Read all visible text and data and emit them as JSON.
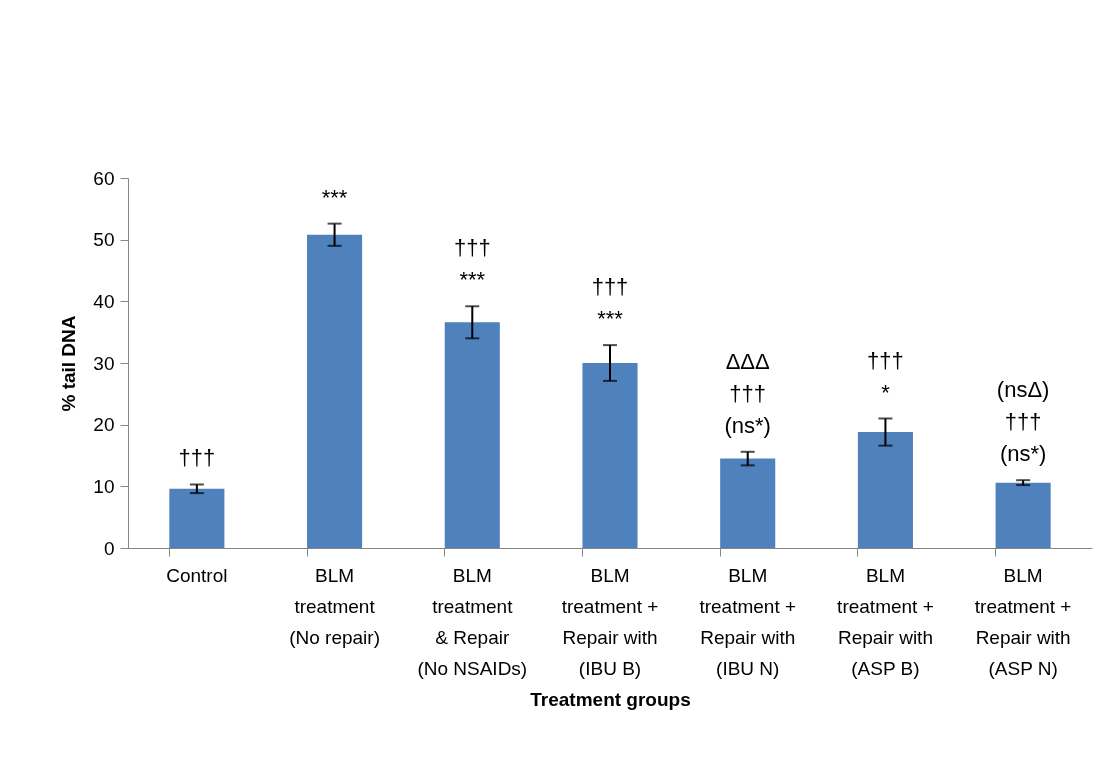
{
  "chart_data": {
    "type": "bar",
    "xlabel": "Treatment groups",
    "ylabel": "% tail DNA",
    "categories": [
      "Control",
      "BLM\ntreatment\n(No repair)",
      "BLM\ntreatment\n& Repair\n(No NSAIDs)",
      "BLM\ntreatment +\nRepair with\n(IBU B)",
      "BLM\ntreatment +\nRepair with\n(IBU N)",
      "BLM\ntreatment +\nRepair with\n(ASP B)",
      "BLM\ntreatment +\nRepair with\n(ASP N)"
    ],
    "values": [
      9.6,
      50.8,
      36.6,
      30.0,
      14.5,
      18.8,
      10.6
    ],
    "errors": [
      0.7,
      1.8,
      2.6,
      2.9,
      1.1,
      2.2,
      0.4
    ],
    "color": "#4f81bd",
    "ylim": [
      0,
      60
    ],
    "yticks": [
      0,
      10,
      20,
      30,
      40,
      50,
      60
    ],
    "grid": false,
    "annotations": [
      {
        "text": "†††",
        "x": "Control",
        "y": 10.3
      },
      {
        "text": "***",
        "x": "BLM\ntreatment\n(No repair)",
        "y": 52.6
      },
      {
        "text": "†††\n***",
        "x": "BLM\ntreatment\n& Repair\n(No NSAIDs)",
        "y": 39.2
      },
      {
        "text": "†††\n***",
        "x": "BLM\ntreatment +\nRepair with\n(IBU B)",
        "y": 32.9
      },
      {
        "text": "ΔΔΔ\n†††\n(ns*)",
        "x": "BLM\ntreatment +\nRepair with\n(IBU N)",
        "y": 15.6
      },
      {
        "text": "†††\n*",
        "x": "BLM\ntreatment +\nRepair with\n(ASP B)",
        "y": 21.0
      },
      {
        "text": "(nsΔ)\n†††\n(ns*)",
        "x": "BLM\ntreatment +\nRepair with\n(ASP N)",
        "y": 11.0
      }
    ]
  }
}
